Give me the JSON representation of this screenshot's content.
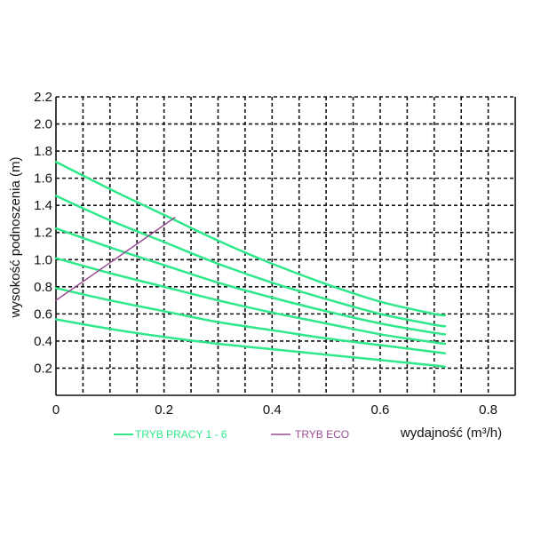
{
  "chart_data": {
    "type": "line",
    "xlabel": "wydajność (m³/h)",
    "ylabel": "wysokość podnoszenia (m)",
    "xlim": [
      0,
      0.85
    ],
    "ylim": [
      0,
      2.2
    ],
    "x_ticks": [
      "0",
      "0.2",
      "0.4",
      "0.6",
      "0.8"
    ],
    "y_ticks": [
      "0.2",
      "0.4",
      "0.6",
      "0.8",
      "1.0",
      "1.2",
      "1.4",
      "1.6",
      "1.8",
      "2.0",
      "2.2"
    ],
    "grid": true,
    "legend_position": "bottom",
    "legend": [
      {
        "label": "TRYB PRACY 1 - 6",
        "color": "#2ee88a"
      },
      {
        "label": "TRYB ECO",
        "color": "#9a4d96"
      }
    ],
    "series": [
      {
        "group": "TRYB PRACY 1 - 6",
        "color": "#2ee88a",
        "x": [
          0,
          0.1,
          0.2,
          0.3,
          0.4,
          0.5,
          0.6,
          0.7,
          0.72
        ],
        "y": [
          1.72,
          1.52,
          1.33,
          1.14,
          0.97,
          0.82,
          0.69,
          0.6,
          0.59
        ]
      },
      {
        "group": "TRYB PRACY 1 - 6",
        "color": "#2ee88a",
        "x": [
          0,
          0.1,
          0.2,
          0.3,
          0.4,
          0.5,
          0.6,
          0.7,
          0.72
        ],
        "y": [
          1.47,
          1.29,
          1.13,
          0.97,
          0.83,
          0.71,
          0.6,
          0.52,
          0.51
        ]
      },
      {
        "group": "TRYB PRACY 1 - 6",
        "color": "#2ee88a",
        "x": [
          0,
          0.1,
          0.2,
          0.3,
          0.4,
          0.5,
          0.6,
          0.7,
          0.72
        ],
        "y": [
          1.23,
          1.09,
          0.96,
          0.83,
          0.72,
          0.62,
          0.53,
          0.46,
          0.45
        ]
      },
      {
        "group": "TRYB PRACY 1 - 6",
        "color": "#2ee88a",
        "x": [
          0,
          0.1,
          0.2,
          0.3,
          0.4,
          0.5,
          0.6,
          0.7,
          0.72
        ],
        "y": [
          1.01,
          0.9,
          0.8,
          0.7,
          0.61,
          0.53,
          0.45,
          0.39,
          0.38
        ]
      },
      {
        "group": "TRYB PRACY 1 - 6",
        "color": "#2ee88a",
        "x": [
          0,
          0.1,
          0.2,
          0.3,
          0.4,
          0.5,
          0.6,
          0.7,
          0.72
        ],
        "y": [
          0.79,
          0.7,
          0.62,
          0.54,
          0.48,
          0.42,
          0.37,
          0.32,
          0.31
        ]
      },
      {
        "group": "TRYB PRACY 1 - 6",
        "color": "#2ee88a",
        "x": [
          0,
          0.1,
          0.2,
          0.3,
          0.4,
          0.5,
          0.6,
          0.7,
          0.72
        ],
        "y": [
          0.56,
          0.49,
          0.43,
          0.38,
          0.34,
          0.3,
          0.26,
          0.22,
          0.21
        ]
      },
      {
        "group": "TRYB ECO",
        "color": "#9a4d96",
        "x": [
          0,
          0.22
        ],
        "y": [
          0.7,
          1.31
        ]
      }
    ]
  }
}
